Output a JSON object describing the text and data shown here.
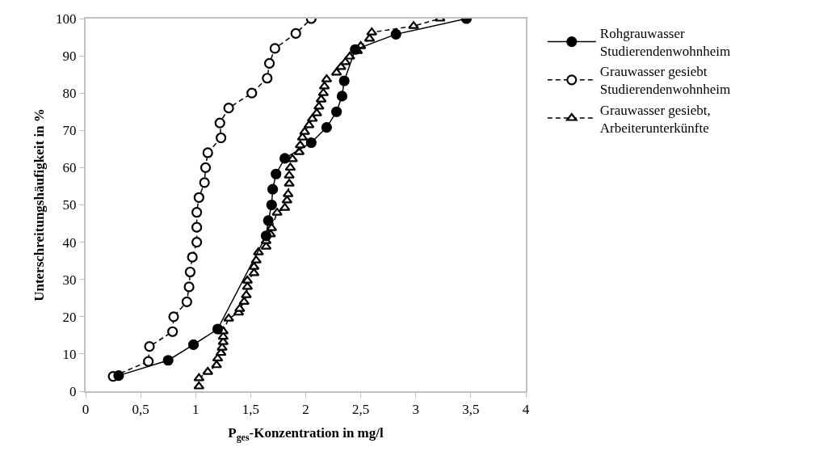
{
  "chart_data": {
    "type": "line",
    "xlabel": "P$_{ges}$-Konzentration in mg/l",
    "ylabel": "Unterschreitungshäufigkeit in %",
    "xlim": [
      0,
      4
    ],
    "ylim": [
      0,
      100
    ],
    "xticks": [
      0,
      {
        "value": 0.5,
        "label": "0,5"
      },
      1,
      {
        "value": 1.5,
        "label": "1,5"
      },
      2,
      {
        "value": 2.5,
        "label": "2,5"
      },
      3,
      {
        "value": 3.5,
        "label": "3,5"
      },
      4
    ],
    "yticks": [
      0,
      10,
      20,
      30,
      40,
      50,
      60,
      70,
      80,
      90,
      100
    ],
    "grid": false,
    "legend": "right",
    "series": [
      {
        "name": "Rohgrauwasser\nStudierendenwohnheim",
        "color": "#000000",
        "marker": "circle",
        "line_style": "solid",
        "x": [
          0.3,
          0.75,
          0.98,
          1.2,
          1.64,
          1.66,
          1.69,
          1.7,
          1.73,
          1.81,
          2.05,
          2.19,
          2.28,
          2.33,
          2.35,
          2.45,
          2.82,
          3.46
        ],
        "values": [
          4.2,
          8.3,
          12.5,
          16.7,
          41.7,
          45.8,
          50,
          54.2,
          58.3,
          62.5,
          66.7,
          70.8,
          75,
          79.2,
          83.3,
          91.7,
          95.8,
          100
        ]
      },
      {
        "name": "Grauwasser gesiebt\nStudierendenwohnheim",
        "color": "#000000",
        "marker": "circle",
        "line_style": "dashed",
        "x": [
          0.25,
          0.57,
          0.58,
          0.79,
          0.8,
          0.92,
          0.94,
          0.95,
          0.97,
          1.01,
          1.01,
          1.01,
          1.03,
          1.08,
          1.09,
          1.11,
          1.23,
          1.22,
          1.3,
          1.51,
          1.65,
          1.67,
          1.72,
          1.91,
          2.05
        ],
        "values": [
          4,
          8,
          12,
          16,
          20,
          24,
          28,
          32,
          36,
          40,
          44,
          48,
          52,
          56,
          60,
          64,
          68,
          72,
          76,
          80,
          84,
          88,
          92,
          96,
          100
        ]
      },
      {
        "name": "Grauwasser gesiebt,\nArbeiterunterkünfte",
        "color": "#000000",
        "marker": "triangle",
        "line_style": "dashed",
        "x": [
          1.03,
          1.03,
          1.11,
          1.19,
          1.2,
          1.23,
          1.24,
          1.25,
          1.25,
          1.25,
          1.3,
          1.39,
          1.4,
          1.44,
          1.46,
          1.47,
          1.47,
          1.53,
          1.53,
          1.55,
          1.57,
          1.64,
          1.64,
          1.68,
          1.69,
          1.74,
          1.81,
          1.83,
          1.84,
          1.85,
          1.85,
          1.86,
          1.88,
          1.94,
          1.95,
          1.97,
          1.99,
          2.03,
          2.06,
          2.1,
          2.12,
          2.14,
          2.16,
          2.17,
          2.19,
          2.28,
          2.32,
          2.36,
          2.4,
          2.47,
          2.5,
          2.58,
          2.6,
          2.98,
          3.22
        ],
        "values": [
          1.3,
          3.5,
          5.2,
          7,
          8.8,
          10.3,
          11.7,
          13.2,
          14.6,
          16.1,
          19.5,
          21.1,
          22.1,
          24,
          25.8,
          28,
          29.7,
          31.7,
          33.4,
          35.1,
          37.3,
          38.8,
          40.3,
          42.1,
          43.8,
          47.9,
          49.2,
          51.2,
          52.9,
          55.7,
          57.9,
          60,
          62.3,
          64.2,
          66,
          68.1,
          69.6,
          71.4,
          73.1,
          74.6,
          76.4,
          78.3,
          80,
          81.8,
          83.7,
          85.5,
          87,
          88.3,
          89.8,
          91.3,
          92.6,
          94.6,
          96.3,
          98,
          100
        ]
      }
    ]
  }
}
